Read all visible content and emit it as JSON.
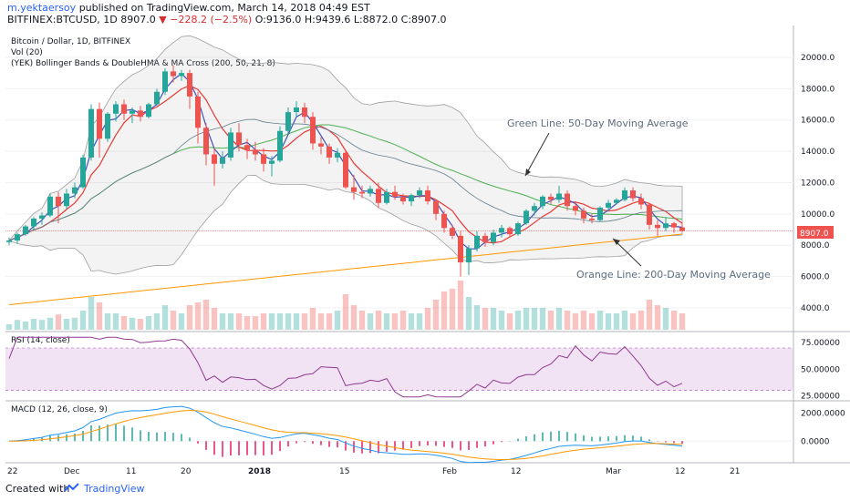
{
  "header": {
    "user": "m.yektaersoy",
    "published": "published on TradingView.com, March 14, 2018 04:49 EST",
    "symbol": "BITFINEX:BTCUSD, 1D",
    "last": "8907.0",
    "change": "−228.2 (−2.5%)",
    "ohlc": "O:9136.0 H:9439.6 L:8872.0 C:8907.0"
  },
  "legend": {
    "title": "Bitcoin / Dollar, 1D, BITFINEX",
    "vol": "Vol (20)",
    "indicator": "(YEK) Bollinger Bands & DoubleHMA & MA Cross (200, 50, 21, 8)"
  },
  "annotations": {
    "green": "Green Line: 50-Day Moving Average",
    "orange": "Orange Line: 200-Day Moving Average"
  },
  "price_label": "8907.0",
  "rsi_label": "RSI (14, close)",
  "macd_label": "MACD (12, 26, close, 9)",
  "footer": {
    "created": "Created with",
    "brand": "TradingView"
  },
  "colors": {
    "up": "#26a69a",
    "down": "#ef5350",
    "ma50": "#4caf50",
    "ma200": "#ff9800",
    "rsi": "#8e3b8e",
    "macd": "#2196f3",
    "signal": "#ff9800"
  },
  "chart_data": [
    {
      "type": "candlestick",
      "y_ticks": [
        "20000.0",
        "18000.0",
        "16000.0",
        "14000.0",
        "12000.0",
        "10000.0",
        "8000.0",
        "6000.0",
        "4000.0"
      ],
      "ylim": [
        2600,
        21800
      ],
      "x_tick_labels": [
        "22",
        "Dec",
        "11",
        "20",
        "2018",
        "15",
        "Feb",
        "12",
        "Mar",
        "12",
        "21"
      ],
      "ohlc": [
        [
          8200,
          8500,
          8000,
          8300
        ],
        [
          8300,
          8800,
          8100,
          8700
        ],
        [
          8700,
          9300,
          8600,
          9200
        ],
        [
          9200,
          9800,
          9000,
          9700
        ],
        [
          9700,
          10100,
          9300,
          9900
        ],
        [
          9900,
          11300,
          9800,
          11100
        ],
        [
          11100,
          11400,
          9400,
          10500
        ],
        [
          10500,
          11600,
          10300,
          11300
        ],
        [
          11300,
          12000,
          11000,
          11700
        ],
        [
          11700,
          13800,
          11600,
          13600
        ],
        [
          13600,
          17000,
          13400,
          16700
        ],
        [
          16700,
          17100,
          13600,
          14800
        ],
        [
          14800,
          16500,
          14600,
          16400
        ],
        [
          16400,
          17200,
          15900,
          17000
        ],
        [
          17000,
          17300,
          16000,
          16400
        ],
        [
          16400,
          16800,
          15800,
          16600
        ],
        [
          16600,
          16900,
          15900,
          16200
        ],
        [
          16200,
          17100,
          16100,
          17000
        ],
        [
          17000,
          18000,
          16900,
          17800
        ],
        [
          17800,
          19300,
          17600,
          19100
        ],
        [
          19100,
          19500,
          18400,
          18800
        ],
        [
          18800,
          19200,
          18500,
          19000
        ],
        [
          19000,
          19200,
          16700,
          17500
        ],
        [
          17500,
          17800,
          14500,
          15500
        ],
        [
          15500,
          15800,
          13100,
          13800
        ],
        [
          13800,
          14200,
          11800,
          13200
        ],
        [
          13200,
          14000,
          12900,
          13600
        ],
        [
          13600,
          15500,
          13400,
          15200
        ],
        [
          15200,
          15800,
          14000,
          14400
        ],
        [
          14400,
          14800,
          13500,
          14100
        ],
        [
          14100,
          14600,
          13400,
          13800
        ],
        [
          13800,
          14200,
          12700,
          13200
        ],
        [
          13200,
          13700,
          12400,
          13400
        ],
        [
          13400,
          15600,
          13300,
          15300
        ],
        [
          15300,
          16800,
          15100,
          16500
        ],
        [
          16500,
          17200,
          16200,
          16800
        ],
        [
          16800,
          17100,
          15800,
          16200
        ],
        [
          16200,
          16500,
          14100,
          14500
        ],
        [
          14500,
          14900,
          13800,
          14300
        ],
        [
          14300,
          14500,
          13200,
          13600
        ],
        [
          13600,
          14200,
          13300,
          13900
        ],
        [
          13900,
          14100,
          11600,
          11700
        ],
        [
          11700,
          12500,
          10900,
          11400
        ],
        [
          11400,
          11800,
          11000,
          11300
        ],
        [
          11300,
          11800,
          11100,
          11600
        ],
        [
          11600,
          12000,
          10400,
          10700
        ],
        [
          10700,
          11600,
          10600,
          11400
        ],
        [
          11400,
          11800,
          10900,
          11100
        ],
        [
          11100,
          11300,
          10600,
          10800
        ],
        [
          10800,
          11300,
          10500,
          11200
        ],
        [
          11200,
          11700,
          11000,
          11500
        ],
        [
          11500,
          11800,
          10600,
          10800
        ],
        [
          10800,
          10900,
          9600,
          10000
        ],
        [
          10000,
          10200,
          8800,
          9100
        ],
        [
          9100,
          9300,
          8400,
          8600
        ],
        [
          8600,
          8900,
          6000,
          6900
        ],
        [
          6900,
          8000,
          6100,
          7800
        ],
        [
          7800,
          8900,
          7600,
          8600
        ],
        [
          8600,
          8800,
          7900,
          8200
        ],
        [
          8200,
          9000,
          8000,
          8800
        ],
        [
          8800,
          9300,
          8500,
          9100
        ],
        [
          9100,
          9200,
          8500,
          8700
        ],
        [
          8700,
          9500,
          8600,
          9400
        ],
        [
          9400,
          10300,
          9300,
          10200
        ],
        [
          10200,
          10700,
          9900,
          10500
        ],
        [
          10500,
          11200,
          10300,
          11100
        ],
        [
          11100,
          11300,
          10600,
          10900
        ],
        [
          10900,
          11800,
          10700,
          11300
        ],
        [
          11300,
          11500,
          10200,
          10500
        ],
        [
          10500,
          10800,
          9900,
          10200
        ],
        [
          10200,
          10400,
          9400,
          9700
        ],
        [
          9700,
          10000,
          9400,
          9600
        ],
        [
          9600,
          10500,
          9500,
          10400
        ],
        [
          10400,
          10900,
          10200,
          10700
        ],
        [
          10700,
          11000,
          10600,
          10900
        ],
        [
          10900,
          11700,
          10800,
          11500
        ],
        [
          11500,
          11700,
          10800,
          11000
        ],
        [
          11000,
          11300,
          10300,
          10600
        ],
        [
          10600,
          10700,
          9000,
          9300
        ],
        [
          9300,
          9600,
          8600,
          9100
        ],
        [
          9100,
          9800,
          8900,
          9400
        ],
        [
          9400,
          9500,
          8800,
          9136
        ],
        [
          9136,
          9440,
          8872,
          8907
        ]
      ],
      "volume": [
        0.1,
        0.18,
        0.15,
        0.2,
        0.18,
        0.22,
        0.28,
        0.2,
        0.22,
        0.35,
        0.6,
        0.5,
        0.3,
        0.3,
        0.25,
        0.22,
        0.2,
        0.25,
        0.3,
        0.45,
        0.35,
        0.3,
        0.45,
        0.5,
        0.55,
        0.4,
        0.3,
        0.3,
        0.3,
        0.25,
        0.25,
        0.3,
        0.3,
        0.3,
        0.3,
        0.3,
        0.3,
        0.4,
        0.3,
        0.3,
        0.35,
        0.65,
        0.45,
        0.35,
        0.3,
        0.35,
        0.3,
        0.3,
        0.35,
        0.3,
        0.3,
        0.4,
        0.55,
        0.7,
        0.75,
        0.9,
        0.6,
        0.45,
        0.4,
        0.4,
        0.35,
        0.3,
        0.35,
        0.4,
        0.4,
        0.4,
        0.35,
        0.4,
        0.35,
        0.3,
        0.35,
        0.3,
        0.35,
        0.3,
        0.3,
        0.35,
        0.3,
        0.35,
        0.55,
        0.45,
        0.4,
        0.35,
        0.3
      ],
      "rsi": {
        "levels": [
          "75.00000",
          "50.00000",
          "25.00000"
        ],
        "bands": [
          70,
          30
        ],
        "ylim": [
          22,
          82
        ]
      },
      "macd": {
        "y_ticks": [
          "2000.0000",
          "0.0000"
        ]
      }
    }
  ]
}
